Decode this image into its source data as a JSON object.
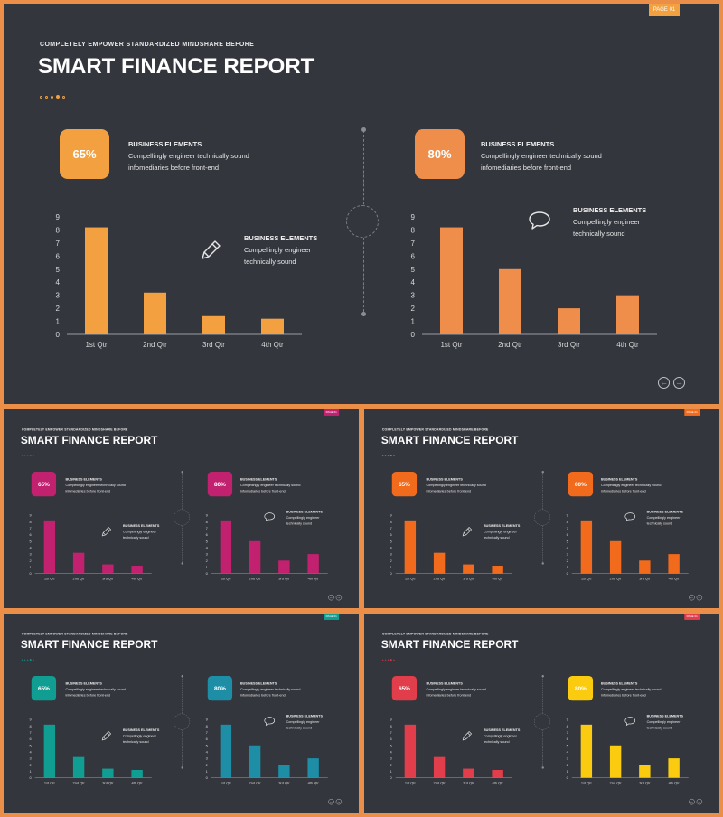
{
  "slides": [
    {
      "id": "main",
      "accent": "#f2a040",
      "accent2": "#ef8e4a",
      "tag": "PAGE 01"
    },
    {
      "id": "magenta",
      "accent": "#c2216f",
      "accent2": "#c2216f",
      "tag": "PAGE 01"
    },
    {
      "id": "orange",
      "accent": "#f26a1b",
      "accent2": "#f26a1b",
      "tag": "PAGE 01"
    },
    {
      "id": "teal",
      "accent": "#109e93",
      "accent2": "#1d8ea6",
      "tag": "PAGE 01"
    },
    {
      "id": "redyellow",
      "accent": "#e23d4a",
      "accent2": "#fbcb10",
      "tag": "PAGE 01"
    }
  ],
  "common": {
    "subtitle": "COMPLETELY EMPOWER STANDARDIZED MINDSHARE BEFORE",
    "title": "SMART FINANCE REPORT",
    "left_percent": "65%",
    "right_percent": "80%",
    "desc_heading": "BUSINESS ELEMENTS",
    "desc_long": "Compellingly engineer technically sound infomediaries before front-end",
    "desc_short": "Compellingly engineer technically sound",
    "icons": {
      "left": "pencil-icon",
      "right": "chat-bubble-icon",
      "prev": "arrow-left-icon",
      "next": "arrow-right-icon"
    }
  },
  "chart_data": [
    {
      "type": "bar",
      "categories": [
        "1st Qtr",
        "2nd Qtr",
        "3rd Qtr",
        "4th Qtr"
      ],
      "values": [
        8.2,
        3.2,
        1.4,
        1.2
      ],
      "ylim": [
        0,
        9
      ],
      "yticks": [
        0,
        1,
        2,
        3,
        4,
        5,
        6,
        7,
        8,
        9
      ]
    },
    {
      "type": "bar",
      "categories": [
        "1st Qtr",
        "2nd Qtr",
        "3rd Qtr",
        "4th Qtr"
      ],
      "values": [
        8.2,
        5.0,
        2.0,
        3.0
      ],
      "ylim": [
        0,
        9
      ],
      "yticks": [
        0,
        1,
        2,
        3,
        4,
        5,
        6,
        7,
        8,
        9
      ]
    }
  ]
}
